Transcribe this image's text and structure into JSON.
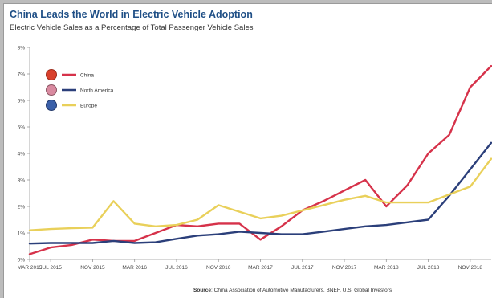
{
  "title": "China Leads the World in Electric Vehicle Adoption",
  "subtitle": "Electric Vehicle Sales as a Percentage of Total Passenger Vehicle Sales",
  "source": {
    "label": "Source",
    "text": "China Association of Automotive Manufacturers, BNEF, U.S. Global Investors"
  },
  "chart_data": {
    "type": "line",
    "title": "China Leads the World in Electric Vehicle Adoption",
    "subtitle": "Electric Vehicle Sales as a Percentage of Total Passenger Vehicle Sales",
    "xlabel": "",
    "ylabel": "",
    "ylim": [
      0,
      8
    ],
    "yticks": [
      "0%",
      "1%",
      "2%",
      "3%",
      "4%",
      "5%",
      "6%",
      "7%",
      "8%"
    ],
    "xtick_labels": [
      "MAR 2015",
      "JUL 2015",
      "NOV 2015",
      "MAR 2016",
      "JUL 2016",
      "NOV 2016",
      "MAR 2017",
      "JUL 2017",
      "NOV 2017",
      "MAR 2018",
      "JUL 2018",
      "NOV 2018"
    ],
    "x": [
      "MAR 2015",
      "JUL 2015",
      "SEP 2015",
      "NOV 2015",
      "JAN 2016",
      "MAR 2016",
      "MAY 2016",
      "JUL 2016",
      "SEP 2016",
      "NOV 2016",
      "JAN 2017",
      "MAR 2017",
      "MAY 2017",
      "JUL 2017",
      "SEP 2017",
      "NOV 2017",
      "JAN 2018",
      "MAR 2018",
      "MAY 2018",
      "JUL 2018",
      "SEP 2018",
      "NOV 2018",
      "JAN 2019"
    ],
    "grid": false,
    "legend_position": "top-left",
    "series": [
      {
        "name": "China",
        "color": "#d6324a",
        "values": [
          0.2,
          0.45,
          0.55,
          0.75,
          0.7,
          0.7,
          1.0,
          1.3,
          1.25,
          1.35,
          1.35,
          0.75,
          1.25,
          1.85,
          2.2,
          2.6,
          3.0,
          2.0,
          2.8,
          4.0,
          4.7,
          6.5,
          7.3
        ]
      },
      {
        "name": "North America",
        "color": "#2b3f7a",
        "values": [
          0.6,
          0.62,
          0.62,
          0.62,
          0.7,
          0.62,
          0.65,
          0.78,
          0.9,
          0.95,
          1.05,
          1.0,
          0.95,
          0.95,
          1.05,
          1.15,
          1.25,
          1.3,
          1.4,
          1.5,
          2.4,
          3.4,
          4.4
        ]
      },
      {
        "name": "Europe",
        "color": "#e9d05a",
        "values": [
          1.1,
          1.15,
          1.18,
          1.2,
          2.2,
          1.35,
          1.25,
          1.3,
          1.5,
          2.05,
          1.8,
          1.55,
          1.65,
          1.85,
          2.05,
          2.25,
          2.4,
          2.15,
          2.15,
          2.15,
          2.45,
          2.75,
          3.8
        ]
      }
    ]
  }
}
